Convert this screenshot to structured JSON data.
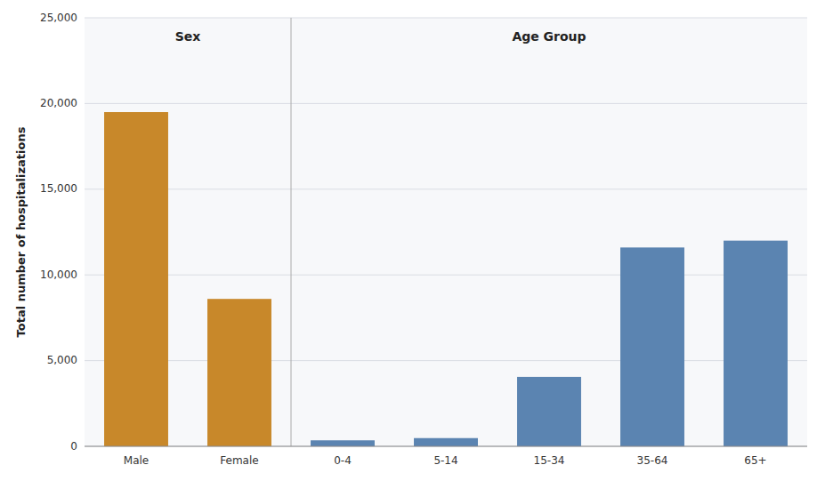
{
  "chart_data": {
    "type": "bar",
    "categories": [
      "Male",
      "Female",
      "0-4",
      "5-14",
      "15-34",
      "35-64",
      "65+"
    ],
    "values": [
      19500,
      8600,
      350,
      480,
      4050,
      11600,
      12000
    ],
    "colors": [
      "#C8882A",
      "#C8882A",
      "#5B84B1",
      "#5B84B1",
      "#5B84B1",
      "#5B84B1",
      "#5B84B1"
    ],
    "ylabel": "Total number of hospitalizations",
    "annotations": [
      "Sex",
      "Age Group"
    ],
    "ylim": [
      0,
      25000
    ],
    "yticks": [
      0,
      {
        "value": 5000,
        "label": "5,000"
      },
      {
        "value": 10000,
        "label": "10,000"
      },
      {
        "value": 15000,
        "label": "15,000"
      },
      {
        "value": 20000,
        "label": "20,000"
      },
      {
        "value": 25000,
        "label": "25,000"
      }
    ],
    "grid": true
  }
}
